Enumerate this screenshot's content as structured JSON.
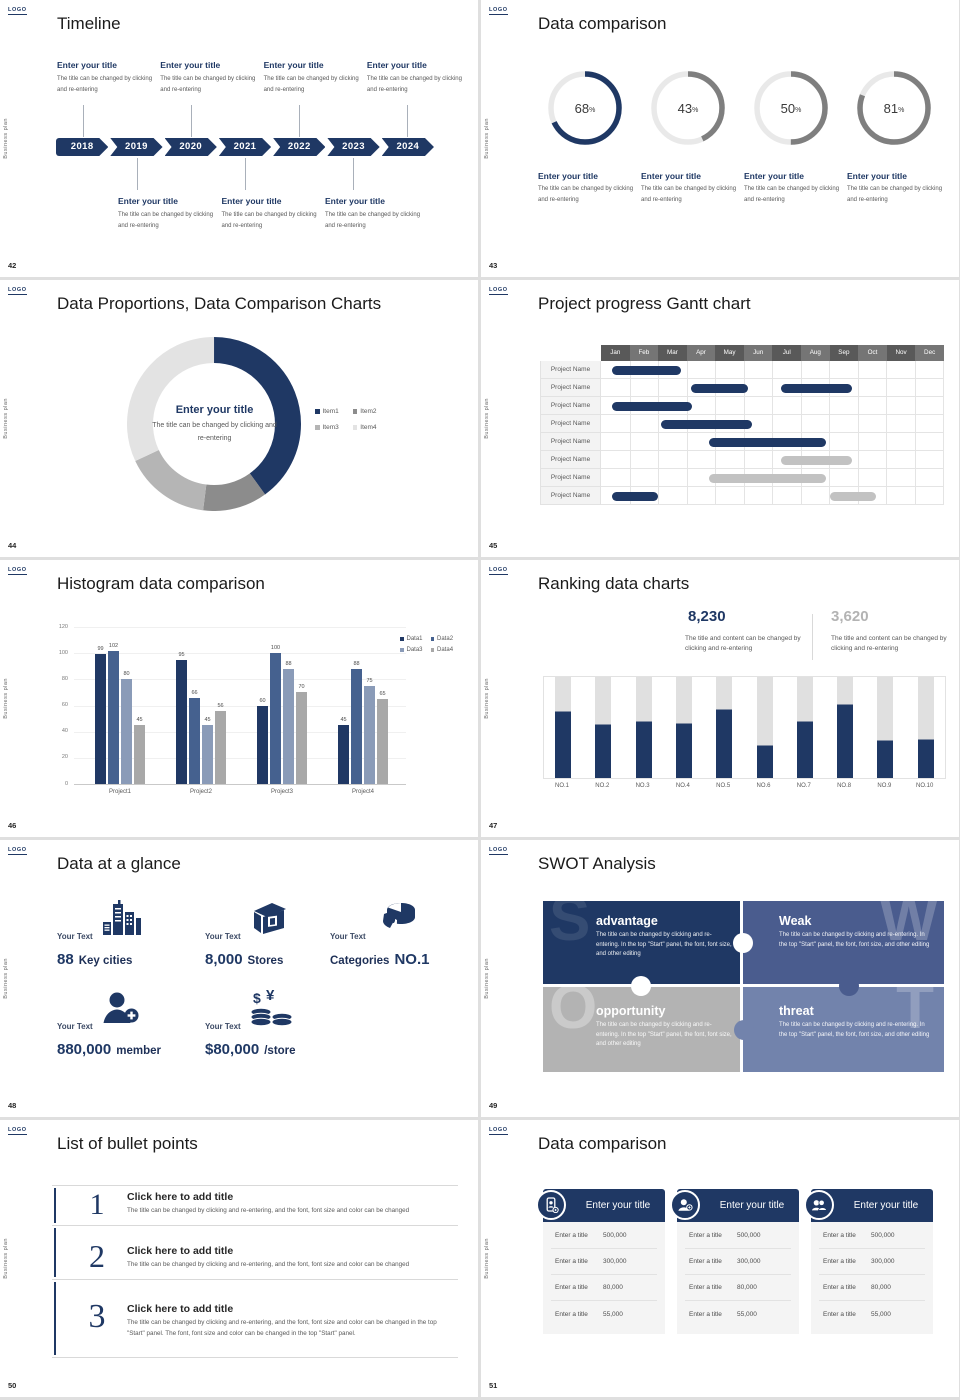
{
  "chrome": {
    "logo": "LOGO",
    "sidebar_text": "Business plan"
  },
  "colors": {
    "accent": "#1f3864",
    "ring_gray": "#7f7f7f",
    "ring_track": "#e9e9e9",
    "gantt_header_dark": "#595959",
    "gantt_header_light": "#757575"
  },
  "common": {
    "item_title": "Enter your title",
    "item_body": "The title can be changed by clicking and re-entering"
  },
  "slides": {
    "timeline": {
      "page": "42",
      "title": "Timeline",
      "years": [
        "2018",
        "2019",
        "2020",
        "2021",
        "2022",
        "2023",
        "2024"
      ],
      "top_indices": [
        0,
        2,
        4,
        6
      ],
      "bottom_indices": [
        1,
        3,
        5
      ]
    },
    "rings": {
      "page": "43",
      "title": "Data comparison"
    },
    "donut": {
      "page": "44",
      "title": "Data Proportions, Data Comparison Charts",
      "center_title": "Enter your title",
      "center_body": "The title can be changed by clicking and re-entering"
    },
    "gantt": {
      "page": "45",
      "title": "Project progress Gantt chart",
      "row_label": "Project Name"
    },
    "histogram": {
      "page": "46",
      "title": "Histogram data comparison"
    },
    "ranking": {
      "page": "47",
      "title": "Ranking data charts",
      "stats": [
        {
          "value": "8,230",
          "caption": "The title and content can be changed by clicking and re-entering",
          "color": "#1f3864"
        },
        {
          "value": "3,620",
          "caption": "The title and content can be changed by clicking and re-entering",
          "color": "#b3b3b3"
        }
      ]
    },
    "glance": {
      "page": "48",
      "title": "Data at a glance",
      "label": "Your Text",
      "items": [
        {
          "icon": "city-icon",
          "parts": [
            {
              "text": "88",
              "big": true
            },
            {
              "text": "Key cities",
              "big": false
            }
          ]
        },
        {
          "icon": "store-icon",
          "parts": [
            {
              "text": "8,000",
              "big": true
            },
            {
              "text": "Stores",
              "big": false
            }
          ]
        },
        {
          "icon": "pie-icon",
          "parts": [
            {
              "text": "Categories",
              "big": false
            },
            {
              "text": "NO.1",
              "big": true
            }
          ]
        },
        {
          "icon": "member-icon",
          "parts": [
            {
              "text": "880,000",
              "big": true
            },
            {
              "text": "member",
              "big": false
            }
          ]
        },
        {
          "icon": "coins-icon",
          "parts": [
            {
              "text": "$80,000",
              "big": true
            },
            {
              "text": "/store",
              "big": false
            }
          ]
        }
      ]
    },
    "swot": {
      "page": "49",
      "title": "SWOT Analysis",
      "body": "The title can be changed by clicking and re-entering. In the top \"Start\" panel, the font, font size, and other editing",
      "quads": [
        {
          "letter": "S",
          "name": "advantage",
          "color": "#1f3864",
          "letter_alpha": 0.1
        },
        {
          "letter": "W",
          "name": "Weak",
          "color": "#4a5c8e",
          "letter_alpha": 0.22
        },
        {
          "letter": "O",
          "name": "opportunity",
          "color": "#b3b3b3",
          "letter_alpha": 0.3
        },
        {
          "letter": "T",
          "name": "threat",
          "color": "#7283ac",
          "letter_alpha": 0.22
        }
      ]
    },
    "bullets": {
      "page": "50",
      "title": "List of bullet points",
      "items": [
        {
          "num": "1",
          "title": "Click here to add title",
          "body": "The title can be changed by clicking and re-entering, and the font, font size and color can be changed"
        },
        {
          "num": "2",
          "title": "Click here to add title",
          "body": "The title can be changed by clicking and re-entering, and the font, font size and color can be changed"
        },
        {
          "num": "3",
          "title": "Click here to add title",
          "body": "The title can be changed by clicking and re-entering, and the font, font size and color can be changed in the top \"Start\" panel. The font, font size and color can be changed in the top \"Start\" panel."
        }
      ]
    },
    "cards": {
      "page": "51",
      "title": "Data comparison",
      "cards": [
        {
          "icon": "device-user-icon",
          "title": "Enter your title",
          "rows": [
            {
              "label": "Enter a title",
              "value": "500,000"
            },
            {
              "label": "Enter a title",
              "value": "300,000"
            },
            {
              "label": "Enter a title",
              "value": "80,000"
            },
            {
              "label": "Enter a title",
              "value": "55,000"
            }
          ]
        },
        {
          "icon": "user-plus-icon",
          "title": "Enter your title",
          "rows": [
            {
              "label": "Enter a title",
              "value": "500,000"
            },
            {
              "label": "Enter a title",
              "value": "300,000"
            },
            {
              "label": "Enter a title",
              "value": "80,000"
            },
            {
              "label": "Enter a title",
              "value": "55,000"
            }
          ]
        },
        {
          "icon": "users-icon",
          "title": "Enter your title",
          "rows": [
            {
              "label": "Enter a title",
              "value": "500,000"
            },
            {
              "label": "Enter a title",
              "value": "300,000"
            },
            {
              "label": "Enter a title",
              "value": "80,000"
            },
            {
              "label": "Enter a title",
              "value": "55,000"
            }
          ]
        }
      ]
    }
  },
  "chart_data": [
    {
      "type": "pie",
      "variant": "progress-rings",
      "title": "Data comparison",
      "values": [
        68,
        43,
        50,
        81
      ],
      "unit": "%",
      "accent_index": 0,
      "colors": [
        "#1f3864",
        "#7f7f7f",
        "#7f7f7f",
        "#7f7f7f"
      ],
      "track_color": "#e9e9e9"
    },
    {
      "type": "pie",
      "variant": "donut",
      "title": "Data Proportions, Data Comparison Charts",
      "labels": [
        "Item1",
        "Item2",
        "Item3",
        "Item4"
      ],
      "values": [
        40,
        12,
        16,
        32
      ],
      "colors": [
        "#1f3864",
        "#8c8c8c",
        "#b5b5b5",
        "#e3e3e3"
      ],
      "legend_position": "right"
    },
    {
      "type": "table",
      "variant": "gantt",
      "title": "Project progress Gantt chart",
      "columns": [
        "Jan",
        "Feb",
        "Mar",
        "Apr",
        "May",
        "Jun",
        "Jul",
        "Aug",
        "Sep",
        "Oct",
        "Nov",
        "Dec"
      ],
      "row_label": "Project Name",
      "bar_colors": {
        "navy": "#1f3864",
        "gray": "#c2c2c2"
      },
      "rows": [
        [
          {
            "start": 0.4,
            "end": 2.8,
            "color": "navy"
          }
        ],
        [
          {
            "start": 3.15,
            "end": 5.15,
            "color": "navy"
          },
          {
            "start": 6.3,
            "end": 8.8,
            "color": "navy"
          }
        ],
        [
          {
            "start": 0.4,
            "end": 3.2,
            "color": "navy"
          }
        ],
        [
          {
            "start": 2.1,
            "end": 5.3,
            "color": "navy"
          }
        ],
        [
          {
            "start": 3.8,
            "end": 7.9,
            "color": "navy"
          }
        ],
        [
          {
            "start": 6.3,
            "end": 8.8,
            "color": "gray"
          }
        ],
        [
          {
            "start": 3.8,
            "end": 7.9,
            "color": "gray"
          }
        ],
        [
          {
            "start": 0.4,
            "end": 2.0,
            "color": "navy"
          },
          {
            "start": 8.05,
            "end": 9.65,
            "color": "gray"
          }
        ]
      ]
    },
    {
      "type": "bar",
      "variant": "grouped",
      "title": "Histogram data comparison",
      "categories": [
        "Project1",
        "Project2",
        "Project3",
        "Project4"
      ],
      "series": [
        {
          "name": "Data1",
          "color": "#203864",
          "values": [
            99,
            95,
            60,
            45
          ]
        },
        {
          "name": "Data2",
          "color": "#45618f",
          "values": [
            102,
            66,
            100,
            88
          ]
        },
        {
          "name": "Data3",
          "color": "#8a9bb8",
          "values": [
            80,
            45,
            88,
            75
          ]
        },
        {
          "name": "Data4",
          "color": "#a8a8a8",
          "values": [
            45,
            56,
            70,
            65
          ]
        }
      ],
      "ylim": [
        0,
        120
      ],
      "yticks": [
        0,
        20,
        40,
        60,
        80,
        100,
        120
      ],
      "legend_position": "top-right"
    },
    {
      "type": "bar",
      "variant": "ranking",
      "title": "Ranking data charts",
      "categories": [
        "NO.1",
        "NO.2",
        "NO.3",
        "NO.4",
        "NO.5",
        "NO.6",
        "NO.7",
        "NO.8",
        "NO.9",
        "NO.10"
      ],
      "values": [
        66,
        53,
        56,
        54,
        68,
        32,
        56,
        73,
        37,
        38
      ],
      "max": 100,
      "fill_color": "#1f3864",
      "track_color": "#e0e0e0"
    }
  ]
}
